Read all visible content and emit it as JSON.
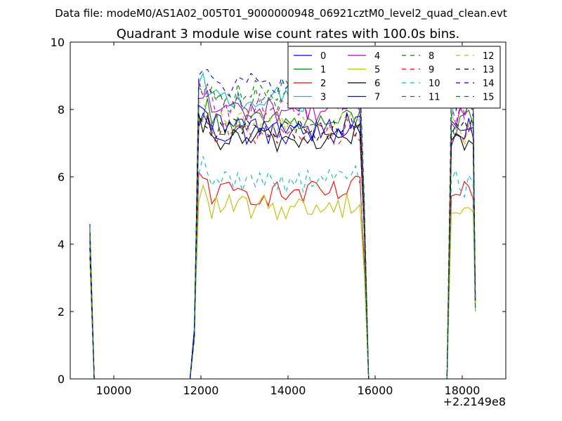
{
  "suptitle": "Data file: modeM0/AS1A02_005T01_9000000948_06921cztM0_level2_quad_clean.evt",
  "chart_data": {
    "type": "line",
    "title": "Quadrant 3 module wise count rates with 100.0s bins.",
    "xlabel": "",
    "ylabel": "",
    "x_offset_label": "+2.2149e8",
    "xlim": [
      9000,
      19000
    ],
    "ylim": [
      0,
      10
    ],
    "xticks": [
      10000,
      12000,
      14000,
      16000,
      18000
    ],
    "xtick_labels": [
      "10000",
      "12000",
      "14000",
      "16000",
      "18000"
    ],
    "yticks": [
      0,
      2,
      4,
      6,
      8,
      10
    ],
    "ytick_labels": [
      "0",
      "2",
      "4",
      "6",
      "8",
      "10"
    ],
    "legend_position": "upper-right",
    "legend_columns": 4,
    "segments": [
      {
        "t_start": 9450,
        "t_end": 9550,
        "shape": "spike"
      },
      {
        "t_start": 11750,
        "t_end": 15950,
        "shape": "plateau"
      },
      {
        "t_start": 17650,
        "t_end": 18350,
        "shape": "plateau"
      }
    ],
    "series": [
      {
        "name": "0",
        "color": "#0000ff",
        "dash": "solid",
        "level": 7.3,
        "spike": 4.2
      },
      {
        "name": "1",
        "color": "#008000",
        "dash": "solid",
        "level": 7.6,
        "spike": 4.1
      },
      {
        "name": "2",
        "color": "#ff0000",
        "dash": "solid",
        "level": 5.5,
        "spike": 3.6
      },
      {
        "name": "3",
        "color": "#00bfbf",
        "dash": "solid",
        "level": 8.3,
        "spike": 4.0
      },
      {
        "name": "4",
        "color": "#bf00bf",
        "dash": "solid",
        "level": 8.0,
        "spike": 4.3
      },
      {
        "name": "5",
        "color": "#bfbf00",
        "dash": "solid",
        "level": 5.1,
        "spike": 3.5
      },
      {
        "name": "6",
        "color": "#000000",
        "dash": "solid",
        "level": 7.1,
        "spike": 3.9
      },
      {
        "name": "7",
        "color": "#0000ff",
        "dash": "solid",
        "level": 7.5,
        "spike": 4.1
      },
      {
        "name": "8",
        "color": "#008000",
        "dash": "dashed",
        "level": 8.3,
        "spike": 4.4
      },
      {
        "name": "9",
        "color": "#ff0000",
        "dash": "dashed",
        "level": 7.3,
        "spike": 4.0
      },
      {
        "name": "10",
        "color": "#00bfbf",
        "dash": "dashed",
        "level": 5.9,
        "spike": 3.8
      },
      {
        "name": "11",
        "color": "#bf00bf",
        "dash": "dashed",
        "level": 8.1,
        "spike": 4.2
      },
      {
        "name": "12",
        "color": "#bfbf00",
        "dash": "dashed",
        "level": 7.6,
        "spike": 4.0
      },
      {
        "name": "13",
        "color": "#000000",
        "dash": "dashed",
        "level": 7.4,
        "spike": 3.9
      },
      {
        "name": "14",
        "color": "#0000ff",
        "dash": "dashed",
        "level": 8.7,
        "spike": 4.6
      },
      {
        "name": "15",
        "color": "#008000",
        "dash": "dashed",
        "level": 8.5,
        "spike": 4.5
      }
    ]
  }
}
